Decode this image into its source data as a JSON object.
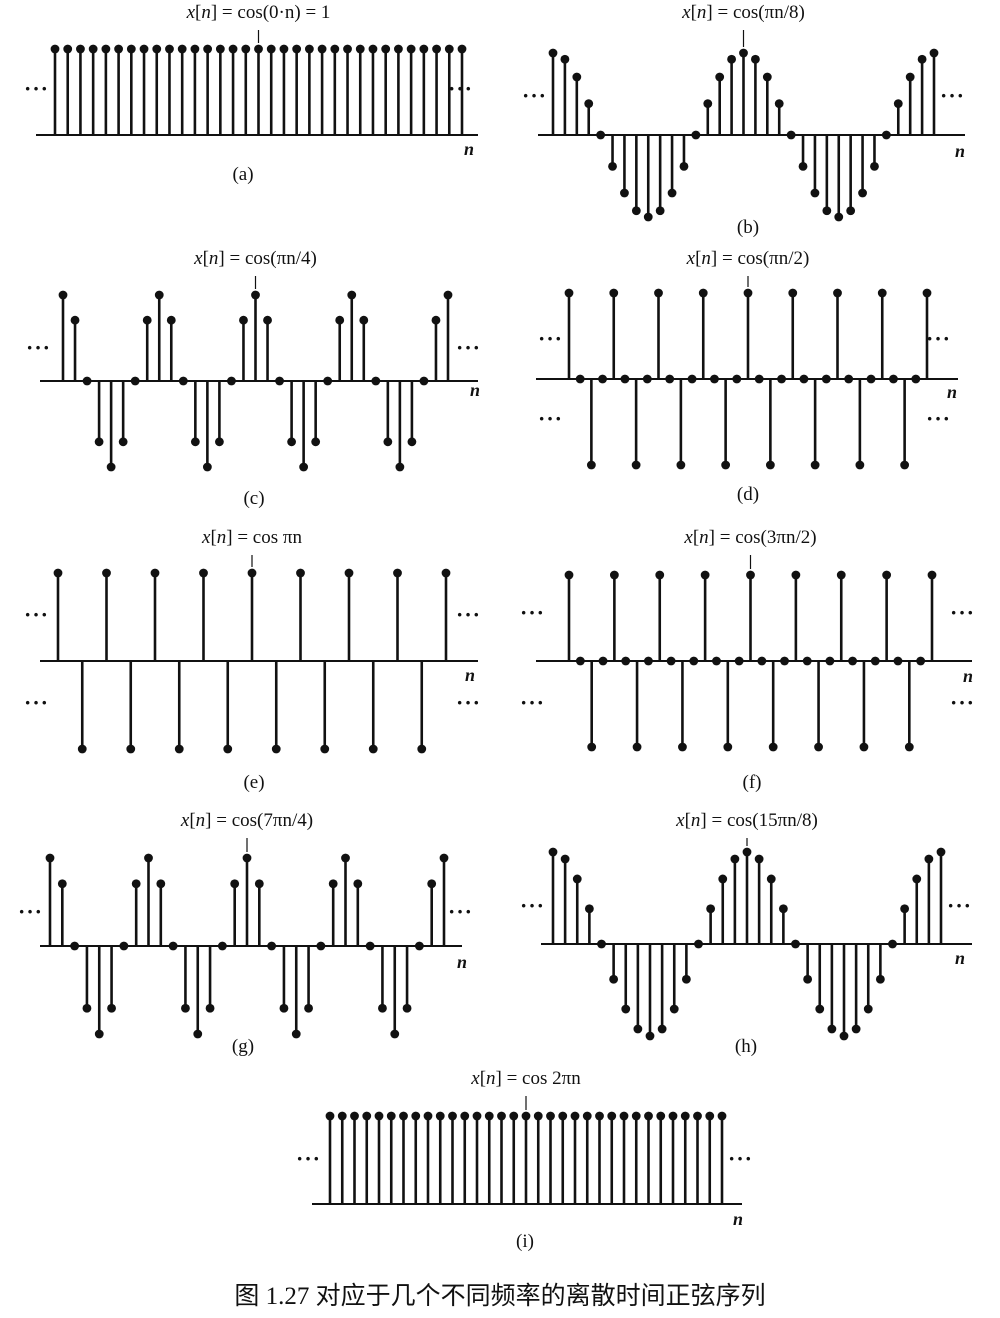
{
  "caption": "图 1.27   对应于几个不同频率的离散时间正弦序列",
  "ellipsis": "···",
  "axis_label": "n",
  "chart_data": [
    {
      "type": "stem",
      "label": "(a)",
      "title": {
        "pre": "x[",
        "var": "n",
        "post": "] = cos(0·n) = 1"
      },
      "omega_over_pi": 0,
      "n_range": [
        -16,
        16
      ],
      "marker_n": 0,
      "ylim": [
        -1,
        1
      ],
      "values_formula": "x[n] = cos(0·n)",
      "y": [
        1,
        1,
        1,
        1,
        1,
        1,
        1,
        1,
        1,
        1,
        1,
        1,
        1,
        1,
        1,
        1,
        1,
        1,
        1,
        1,
        1,
        1,
        1,
        1,
        1,
        1,
        1,
        1,
        1,
        1,
        1,
        1,
        1
      ]
    },
    {
      "type": "stem",
      "label": "(b)",
      "title": {
        "pre": "x[",
        "var": "n",
        "post": "] = cos(πn/8)"
      },
      "omega_over_pi": 0.125,
      "n_range": [
        -16,
        16
      ],
      "marker_n": 0,
      "ylim": [
        -1,
        1
      ],
      "y": [
        1,
        0.924,
        0.707,
        0.383,
        0,
        -0.383,
        -0.707,
        -0.924,
        -1,
        -0.924,
        -0.707,
        -0.383,
        0,
        0.383,
        0.707,
        0.924,
        1,
        0.924,
        0.707,
        0.383,
        0,
        -0.383,
        -0.707,
        -0.924,
        -1,
        -0.924,
        -0.707,
        -0.383,
        0,
        0.383,
        0.707,
        0.924,
        1
      ]
    },
    {
      "type": "stem",
      "label": "(c)",
      "title": {
        "pre": "x[",
        "var": "n",
        "post": "] = cos(πn/4)"
      },
      "omega_over_pi": 0.25,
      "n_range": [
        -16,
        16
      ],
      "marker_n": 0,
      "ylim": [
        -1,
        1
      ],
      "y": [
        1,
        0.707,
        0,
        -0.707,
        -1,
        -0.707,
        0,
        0.707,
        1,
        0.707,
        0,
        -0.707,
        -1,
        -0.707,
        0,
        0.707,
        1,
        0.707,
        0,
        -0.707,
        -1,
        -0.707,
        0,
        0.707,
        1,
        0.707,
        0,
        -0.707,
        -1,
        -0.707,
        0,
        0.707,
        1
      ]
    },
    {
      "type": "stem",
      "label": "(d)",
      "title": {
        "pre": "x[",
        "var": "n",
        "post": "] = cos(πn/2)"
      },
      "omega_over_pi": 0.5,
      "n_range": [
        -16,
        16
      ],
      "marker_n": 0,
      "ylim": [
        -1,
        1
      ],
      "y": [
        1,
        0,
        -1,
        0,
        1,
        0,
        -1,
        0,
        1,
        0,
        -1,
        0,
        1,
        0,
        -1,
        0,
        1,
        0,
        -1,
        0,
        1,
        0,
        -1,
        0,
        1,
        0,
        -1,
        0,
        1,
        0,
        -1,
        0,
        1
      ]
    },
    {
      "type": "stem",
      "label": "(e)",
      "title": {
        "pre": "x[",
        "var": "n",
        "post": "] = cos πn"
      },
      "omega_over_pi": 1,
      "n_range": [
        -8,
        8
      ],
      "marker_n": 0,
      "ylim": [
        -1,
        1
      ],
      "y": [
        1,
        -1,
        1,
        -1,
        1,
        -1,
        1,
        -1,
        1,
        -1,
        1,
        -1,
        1,
        -1,
        1,
        -1,
        1
      ]
    },
    {
      "type": "stem",
      "label": "(f)",
      "title": {
        "pre": "x[",
        "var": "n",
        "post": "] = cos(3πn/2)"
      },
      "omega_over_pi": 1.5,
      "n_range": [
        -16,
        16
      ],
      "marker_n": 0,
      "ylim": [
        -1,
        1
      ],
      "y": [
        1,
        0,
        -1,
        0,
        1,
        0,
        -1,
        0,
        1,
        0,
        -1,
        0,
        1,
        0,
        -1,
        0,
        1,
        0,
        -1,
        0,
        1,
        0,
        -1,
        0,
        1,
        0,
        -1,
        0,
        1,
        0,
        -1,
        0,
        1
      ]
    },
    {
      "type": "stem",
      "label": "(g)",
      "title": {
        "pre": "x[",
        "var": "n",
        "post": "] = cos(7πn/4)"
      },
      "omega_over_pi": 1.75,
      "n_range": [
        -16,
        16
      ],
      "marker_n": 0,
      "ylim": [
        -1,
        1
      ],
      "y": [
        1,
        0.707,
        0,
        -0.707,
        -1,
        -0.707,
        0,
        0.707,
        1,
        0.707,
        0,
        -0.707,
        -1,
        -0.707,
        0,
        0.707,
        1,
        0.707,
        0,
        -0.707,
        -1,
        -0.707,
        0,
        0.707,
        1,
        0.707,
        0,
        -0.707,
        -1,
        -0.707,
        0,
        0.707,
        1
      ]
    },
    {
      "type": "stem",
      "label": "(h)",
      "title": {
        "pre": "x[",
        "var": "n",
        "post": "] = cos(15πn/8)"
      },
      "omega_over_pi": 1.875,
      "n_range": [
        -16,
        16
      ],
      "marker_n": 0,
      "ylim": [
        -1,
        1
      ],
      "y": [
        1,
        0.924,
        0.707,
        0.383,
        0,
        -0.383,
        -0.707,
        -0.924,
        -1,
        -0.924,
        -0.707,
        -0.383,
        0,
        0.383,
        0.707,
        0.924,
        1,
        0.924,
        0.707,
        0.383,
        0,
        -0.383,
        -0.707,
        -0.924,
        -1,
        -0.924,
        -0.707,
        -0.383,
        0,
        0.383,
        0.707,
        0.924,
        1
      ]
    },
    {
      "type": "stem",
      "label": "(i)",
      "title": {
        "pre": "x[",
        "var": "n",
        "post": "] = cos 2πn"
      },
      "omega_over_pi": 2,
      "n_range": [
        -16,
        16
      ],
      "marker_n": 0,
      "ylim": [
        -1,
        1
      ],
      "y": [
        1,
        1,
        1,
        1,
        1,
        1,
        1,
        1,
        1,
        1,
        1,
        1,
        1,
        1,
        1,
        1,
        1,
        1,
        1,
        1,
        1,
        1,
        1,
        1,
        1,
        1,
        1,
        1,
        1,
        1,
        1,
        1,
        1
      ]
    }
  ]
}
